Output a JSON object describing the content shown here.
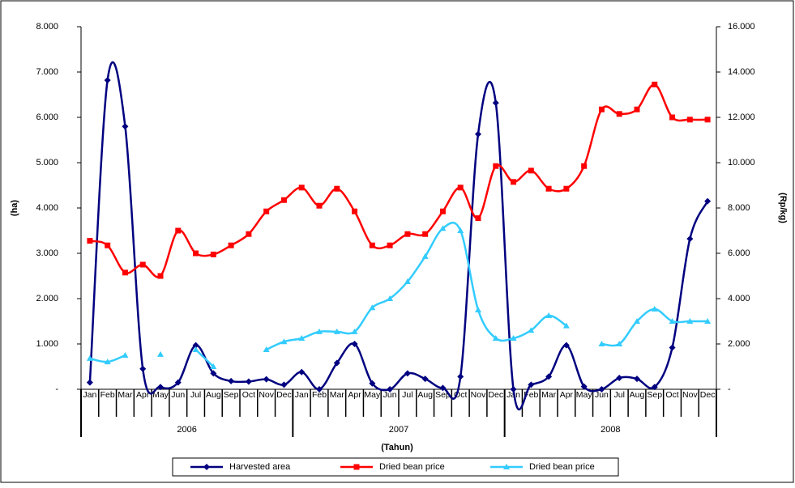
{
  "chart_data": {
    "type": "line",
    "categories": [
      "Jan",
      "Feb",
      "Mar",
      "Apr",
      "May",
      "Jun",
      "Jul",
      "Aug",
      "Sep",
      "Oct",
      "Nov",
      "Dec",
      "Jan",
      "Feb",
      "Mar",
      "Apr",
      "May",
      "Jun",
      "Jul",
      "Aug",
      "Sep",
      "Oct",
      "Nov",
      "Dec",
      "Jan",
      "Feb",
      "Mar",
      "Apr",
      "May",
      "Jun",
      "Jul",
      "Aug",
      "Sep",
      "Oct",
      "Nov",
      "Dec"
    ],
    "x_groups": [
      "2006",
      "2007",
      "2008"
    ],
    "xlabel": "(Tahun)",
    "ylabel": "(ha)",
    "y2label": "(Rp/kg)",
    "ylim": [
      0,
      8000
    ],
    "yticks": [
      {
        "value": 0,
        "label": "-"
      },
      {
        "value": 1000,
        "label": "1.000"
      },
      {
        "value": 2000,
        "label": "2.000"
      },
      {
        "value": 3000,
        "label": "3.000"
      },
      {
        "value": 4000,
        "label": "4.000"
      },
      {
        "value": 5000,
        "label": "5.000"
      },
      {
        "value": 6000,
        "label": "6.000"
      },
      {
        "value": 7000,
        "label": "7.000"
      },
      {
        "value": 8000,
        "label": "8.000"
      }
    ],
    "y2lim": [
      0,
      16000
    ],
    "y2ticks": [
      {
        "value": 0,
        "label": "-"
      },
      {
        "value": 2000,
        "label": "2.000"
      },
      {
        "value": 4000,
        "label": "4.000"
      },
      {
        "value": 6000,
        "label": "6.000"
      },
      {
        "value": 8000,
        "label": "8.000"
      },
      {
        "value": 10000,
        "label": "10.000"
      },
      {
        "value": 12000,
        "label": "12.000"
      },
      {
        "value": 14000,
        "label": "14.000"
      },
      {
        "value": 16000,
        "label": "16.000"
      }
    ],
    "series": [
      {
        "name": "Harvested area",
        "color": "#000080",
        "marker": "diamond",
        "values": [
          150,
          6820,
          5800,
          450,
          50,
          150,
          970,
          350,
          180,
          170,
          220,
          100,
          380,
          0,
          580,
          1000,
          130,
          0,
          350,
          230,
          30,
          280,
          5630,
          6320,
          0,
          100,
          280,
          970,
          60,
          0,
          250,
          230,
          50,
          920,
          3320,
          4150
        ]
      },
      {
        "name": "Dried bean price",
        "color": "#ff0000",
        "marker": "square",
        "axis": "y2",
        "values": [
          6550,
          6350,
          5150,
          5500,
          5000,
          7000,
          6000,
          5950,
          6350,
          6850,
          7850,
          8350,
          8900,
          8100,
          8850,
          7850,
          6350,
          6350,
          6850,
          6850,
          7850,
          8900,
          7550,
          9850,
          9150,
          9650,
          8850,
          8850,
          9850,
          12350,
          12150,
          12350,
          13450,
          12000,
          11900,
          11900
        ]
      },
      {
        "name": "Dried bean price",
        "color": "#33ccff",
        "marker": "triangle",
        "axis": "y2",
        "values": [
          1360,
          1210,
          1500,
          null,
          1540,
          null,
          1750,
          1000,
          null,
          null,
          1750,
          2100,
          2250,
          2540,
          2540,
          2540,
          3600,
          4000,
          4750,
          5860,
          7100,
          7000,
          3500,
          2250,
          2250,
          2600,
          3250,
          2800,
          null,
          2000,
          2000,
          3000,
          3540,
          3000,
          3000,
          3000
        ]
      }
    ]
  }
}
